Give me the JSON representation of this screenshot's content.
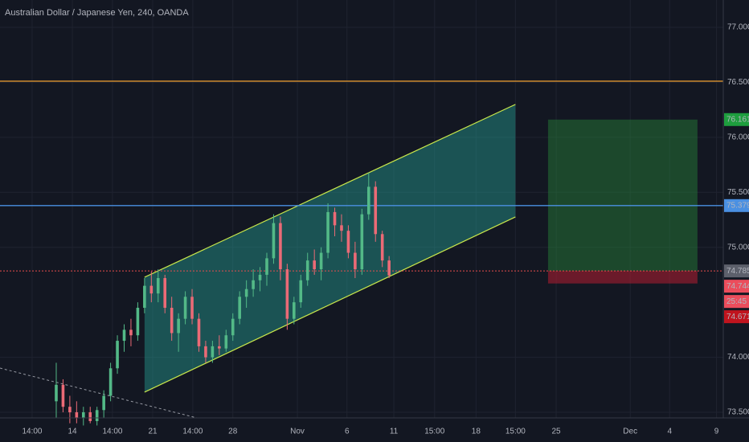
{
  "chart_data": {
    "type": "candlestick",
    "title": "Australian Dollar / Japanese Yen, 240, OANDA",
    "xlim": [
      -8.28,
      98.2
    ],
    "ylim": [
      73.449,
      77.248
    ],
    "yticks": [
      {
        "value": 77,
        "label": "77.000"
      },
      {
        "value": 76.5,
        "label": "76.500"
      },
      {
        "value": 76,
        "label": "76.000"
      },
      {
        "value": 75.5,
        "label": "75.500"
      },
      {
        "value": 75,
        "label": "75.000"
      },
      {
        "value": 74,
        "label": "74.000"
      },
      {
        "value": 73.5,
        "label": "73.500"
      }
    ],
    "xticks": [
      {
        "value": -3.55,
        "label": "14:00"
      },
      {
        "value": 2.37,
        "label": "14"
      },
      {
        "value": 8.28,
        "label": "14:00"
      },
      {
        "value": 14.2,
        "label": "21"
      },
      {
        "value": 20.1,
        "label": "14:00"
      },
      {
        "value": 26.0,
        "label": "28"
      },
      {
        "value": 35.5,
        "label": "Nov"
      },
      {
        "value": 42.8,
        "label": "6"
      },
      {
        "value": 49.7,
        "label": "11"
      },
      {
        "value": 55.7,
        "label": "15:00"
      },
      {
        "value": 61.8,
        "label": "18"
      },
      {
        "value": 67.6,
        "label": "15:00"
      },
      {
        "value": 73.6,
        "label": "25"
      },
      {
        "value": 84.5,
        "label": "Dec"
      },
      {
        "value": 90.3,
        "label": "4"
      },
      {
        "value": 97.2,
        "label": "9"
      }
    ],
    "grid": true,
    "up_color": "#53b987",
    "down_color": "#eb6a76",
    "open": [
      73.6,
      73.75,
      73.55,
      73.5,
      73.45,
      73.5,
      73.42,
      73.52,
      73.65,
      73.9,
      74.15,
      74.25,
      74.2,
      74.45,
      74.65,
      74.58,
      74.72,
      74.45,
      74.22,
      74.35,
      74.55,
      74.35,
      74.1,
      74.0,
      74.1,
      74.08,
      74.2,
      74.35,
      74.55,
      74.62,
      74.7,
      74.75,
      74.9,
      75.22,
      74.8,
      74.35,
      74.5,
      74.7,
      74.88,
      74.8,
      74.95,
      75.32,
      75.2,
      75.15,
      74.95,
      74.8,
      75.3,
      75.55,
      75.12,
      74.88
    ],
    "high": [
      73.95,
      73.8,
      73.65,
      73.6,
      73.55,
      73.55,
      73.55,
      73.7,
      73.95,
      74.2,
      74.3,
      74.35,
      74.5,
      74.72,
      74.78,
      74.8,
      74.75,
      74.55,
      74.4,
      74.6,
      74.62,
      74.4,
      74.15,
      74.15,
      74.2,
      74.25,
      74.4,
      74.6,
      74.7,
      74.8,
      74.82,
      74.95,
      75.3,
      75.28,
      74.85,
      74.55,
      74.75,
      74.95,
      74.98,
      75.0,
      75.4,
      75.36,
      75.3,
      75.2,
      75.05,
      75.35,
      75.68,
      75.6,
      75.15,
      74.92
    ],
    "low": [
      73.45,
      73.5,
      73.4,
      73.4,
      73.38,
      73.4,
      73.38,
      73.45,
      73.6,
      73.85,
      74.05,
      74.1,
      74.15,
      74.4,
      74.5,
      74.5,
      74.4,
      74.15,
      74.05,
      74.3,
      74.3,
      74.05,
      73.95,
      73.95,
      74.02,
      74.05,
      74.15,
      74.3,
      74.45,
      74.55,
      74.6,
      74.65,
      74.85,
      74.7,
      74.25,
      74.3,
      74.45,
      74.65,
      74.75,
      74.7,
      74.9,
      75.1,
      75.05,
      74.9,
      74.72,
      74.75,
      75.25,
      75.05,
      74.82,
      74.72
    ],
    "close": [
      73.75,
      73.55,
      73.5,
      73.45,
      73.5,
      73.42,
      73.52,
      73.65,
      73.9,
      74.15,
      74.25,
      74.2,
      74.45,
      74.65,
      74.58,
      74.72,
      74.45,
      74.22,
      74.35,
      74.55,
      74.35,
      74.1,
      74.0,
      74.1,
      74.08,
      74.2,
      74.35,
      74.55,
      74.62,
      74.7,
      74.75,
      74.9,
      75.22,
      74.8,
      74.35,
      74.5,
      74.7,
      74.88,
      74.8,
      74.95,
      75.32,
      75.2,
      75.15,
      74.95,
      74.8,
      75.3,
      75.55,
      75.12,
      74.88,
      74.744
    ],
    "channel": {
      "x": [
        13.0,
        67.6
      ],
      "upper": [
        74.728,
        76.299
      ],
      "lower": [
        73.683,
        75.276
      ],
      "color": "#c8e64b",
      "fill": "rgba(38,166,154,0.42)"
    },
    "trend_line": {
      "x": [
        -8.28,
        20.7
      ],
      "y": [
        73.902,
        73.449
      ],
      "color": "#9598a1"
    },
    "hlines": [
      {
        "value": 76.51,
        "color": "#f0a030",
        "style": "solid"
      },
      {
        "value": 75.379,
        "color": "#4a90e2",
        "style": "solid"
      },
      {
        "value": 74.785,
        "color": "#e84d4d",
        "style": "dotted"
      }
    ],
    "position": {
      "x": [
        72.4,
        94.4
      ],
      "target": 76.161,
      "entry": 74.785,
      "stop": 74.671,
      "profit_color": "rgba(40,140,60,0.42)",
      "loss_color": "rgba(180,30,50,0.55)"
    },
    "price_labels": [
      {
        "value": 76.161,
        "label": "76.161",
        "color": "#1e9e3e"
      },
      {
        "value": 75.379,
        "label": "75.379",
        "color": "#4a90e2"
      },
      {
        "value": 74.785,
        "label": "74.785",
        "color": "#5d606b"
      },
      {
        "value": 74.744,
        "label": "74.744",
        "color": "#eb4d5c"
      },
      {
        "value": 74.671,
        "label": "74.671",
        "color": "#c0141e"
      }
    ],
    "countdown": {
      "label": "25:45",
      "color": "#eb4d5c"
    }
  }
}
